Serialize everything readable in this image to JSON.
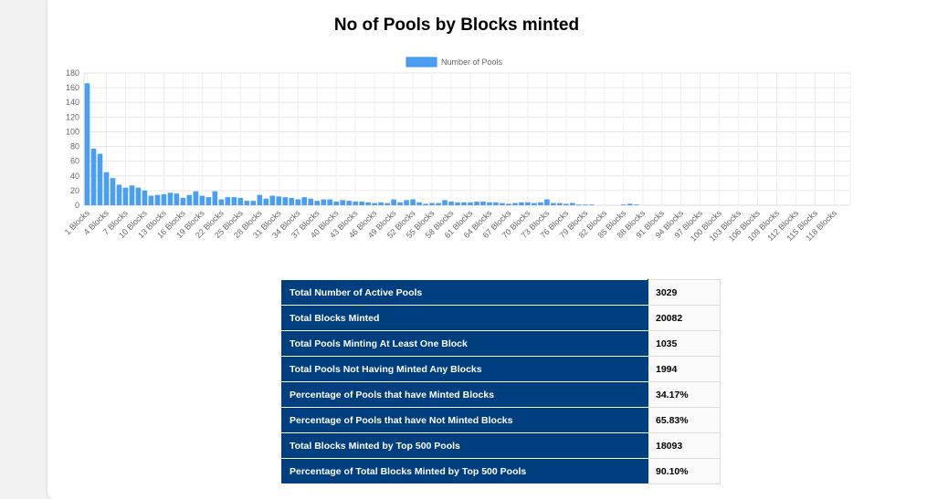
{
  "chart_data": {
    "type": "bar",
    "title": "No of Pools by Blocks minted",
    "legend": {
      "label": "Number of Pools",
      "position": "top-center"
    },
    "series": [
      {
        "name": "Number of Pools",
        "color": "#4a9ff5",
        "values": [
          166,
          77,
          70,
          45,
          37,
          28,
          24,
          27,
          24,
          20,
          13,
          14,
          15,
          17,
          16,
          10,
          14,
          19,
          13,
          11,
          19,
          8,
          11,
          11,
          10,
          6,
          6,
          14,
          9,
          13,
          12,
          11,
          10,
          8,
          11,
          9,
          6,
          8,
          8,
          5,
          7,
          6,
          5,
          5,
          4,
          3,
          4,
          3,
          8,
          4,
          7,
          8,
          4,
          2,
          3,
          3,
          7,
          5,
          4,
          4,
          4,
          5,
          5,
          4,
          4,
          3,
          2,
          3,
          4,
          4,
          3,
          4,
          8,
          3,
          3,
          2,
          3,
          1,
          1,
          1,
          0,
          0,
          0,
          0,
          1,
          2,
          1,
          0,
          0,
          0,
          0,
          0,
          0,
          0,
          0,
          0,
          0,
          0,
          0,
          0,
          0,
          0,
          0,
          0,
          0,
          0,
          0,
          0,
          0,
          0,
          0,
          0,
          0,
          0,
          0,
          0,
          0,
          0,
          0,
          0
        ]
      }
    ],
    "categories": [
      "1 Blocks",
      "2 Blocks",
      "3 Blocks",
      "4 Blocks",
      "5 Blocks",
      "6 Blocks",
      "7 Blocks",
      "8 Blocks",
      "9 Blocks",
      "10 Blocks",
      "11 Blocks",
      "12 Blocks",
      "13 Blocks",
      "14 Blocks",
      "15 Blocks",
      "16 Blocks",
      "17 Blocks",
      "18 Blocks",
      "19 Blocks",
      "20 Blocks",
      "21 Blocks",
      "22 Blocks",
      "23 Blocks",
      "24 Blocks",
      "25 Blocks",
      "26 Blocks",
      "27 Blocks",
      "28 Blocks",
      "29 Blocks",
      "30 Blocks",
      "31 Blocks",
      "32 Blocks",
      "33 Blocks",
      "34 Blocks",
      "35 Blocks",
      "36 Blocks",
      "37 Blocks",
      "38 Blocks",
      "39 Blocks",
      "40 Blocks",
      "41 Blocks",
      "42 Blocks",
      "43 Blocks",
      "44 Blocks",
      "45 Blocks",
      "46 Blocks",
      "47 Blocks",
      "48 Blocks",
      "49 Blocks",
      "50 Blocks",
      "51 Blocks",
      "52 Blocks",
      "53 Blocks",
      "54 Blocks",
      "55 Blocks",
      "56 Blocks",
      "57 Blocks",
      "58 Blocks",
      "59 Blocks",
      "60 Blocks",
      "61 Blocks",
      "62 Blocks",
      "63 Blocks",
      "64 Blocks",
      "65 Blocks",
      "66 Blocks",
      "67 Blocks",
      "68 Blocks",
      "69 Blocks",
      "70 Blocks",
      "71 Blocks",
      "72 Blocks",
      "73 Blocks",
      "74 Blocks",
      "75 Blocks",
      "76 Blocks",
      "77 Blocks",
      "78 Blocks",
      "79 Blocks",
      "80 Blocks",
      "81 Blocks",
      "82 Blocks",
      "83 Blocks",
      "84 Blocks",
      "85 Blocks",
      "86 Blocks",
      "87 Blocks",
      "88 Blocks",
      "89 Blocks",
      "90 Blocks",
      "91 Blocks",
      "92 Blocks",
      "93 Blocks",
      "94 Blocks",
      "95 Blocks",
      "96 Blocks",
      "97 Blocks",
      "98 Blocks",
      "99 Blocks",
      "100 Blocks",
      "101 Blocks",
      "102 Blocks",
      "103 Blocks",
      "104 Blocks",
      "105 Blocks",
      "106 Blocks",
      "107 Blocks",
      "108 Blocks",
      "109 Blocks",
      "110 Blocks",
      "111 Blocks",
      "112 Blocks",
      "113 Blocks",
      "114 Blocks",
      "115 Blocks",
      "116 Blocks",
      "117 Blocks",
      "118 Blocks",
      "119 Blocks",
      "120 Blocks"
    ],
    "tick_labels_x": [
      "1 Blocks",
      "4 Blocks",
      "7 Blocks",
      "10 Blocks",
      "13 Blocks",
      "16 Blocks",
      "19 Blocks",
      "22 Blocks",
      "25 Blocks",
      "28 Blocks",
      "31 Blocks",
      "34 Blocks",
      "37 Blocks",
      "40 Blocks",
      "43 Blocks",
      "46 Blocks",
      "49 Blocks",
      "52 Blocks",
      "55 Blocks",
      "58 Blocks",
      "61 Blocks",
      "64 Blocks",
      "67 Blocks",
      "70 Blocks",
      "73 Blocks",
      "76 Blocks",
      "79 Blocks",
      "82 Blocks",
      "85 Blocks",
      "88 Blocks",
      "91 Blocks",
      "94 Blocks",
      "97 Blocks",
      "100 Blocks",
      "103 Blocks",
      "106 Blocks",
      "109 Blocks",
      "112 Blocks",
      "115 Blocks",
      "118 Blocks"
    ],
    "y_ticks": [
      0,
      20,
      40,
      60,
      80,
      100,
      120,
      140,
      160,
      180
    ],
    "ylim": [
      0,
      180
    ],
    "grid": true,
    "xlabel": "",
    "ylabel": ""
  },
  "stats_table": [
    {
      "label": "Total Number of Active Pools",
      "value": "3029"
    },
    {
      "label": "Total Blocks Minted",
      "value": "20082"
    },
    {
      "label": "Total Pools Minting At Least One Block",
      "value": "1035"
    },
    {
      "label": "Total Pools Not Having Minted Any Blocks",
      "value": "1994"
    },
    {
      "label": "Percentage of Pools that have Minted Blocks",
      "value": "34.17%"
    },
    {
      "label": "Percentage of Pools that have Not Minted Blocks",
      "value": "65.83%"
    },
    {
      "label": "Total Blocks Minted by Top 500 Pools",
      "value": "18093"
    },
    {
      "label": "Percentage of Total Blocks Minted by Top 500 Pools",
      "value": "90.10%"
    }
  ]
}
